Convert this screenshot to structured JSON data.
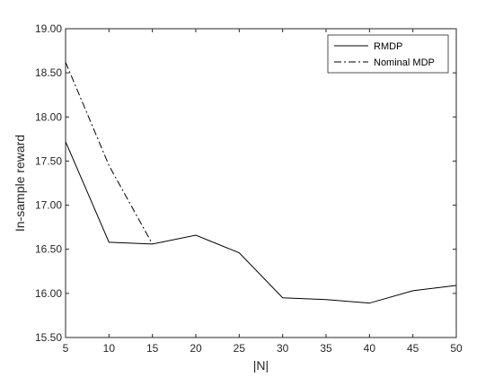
{
  "chart_data": {
    "type": "line",
    "title": "",
    "xlabel": "|N|",
    "ylabel": "In-sample reward",
    "xlim": [
      5,
      50
    ],
    "ylim": [
      15.5,
      19.0
    ],
    "xticks": [
      5,
      10,
      15,
      20,
      25,
      30,
      35,
      40,
      45,
      50
    ],
    "yticks": [
      15.5,
      16.0,
      16.5,
      17.0,
      17.5,
      18.0,
      18.5,
      19.0
    ],
    "ytick_labels": [
      "15.50",
      "16.00",
      "16.50",
      "17.00",
      "17.50",
      "18.00",
      "18.50",
      "19.00"
    ],
    "grid": false,
    "legend_position": "top-right",
    "series": [
      {
        "name": "RMDP",
        "style": "solid",
        "color": "#000000",
        "x": [
          5,
          10,
          15,
          20,
          25,
          30,
          35,
          40,
          45,
          50
        ],
        "y": [
          17.72,
          16.58,
          16.56,
          16.66,
          16.46,
          15.95,
          15.93,
          15.89,
          16.03,
          16.09
        ]
      },
      {
        "name": "Nominal MDP",
        "style": "dashdot",
        "color": "#000000",
        "x": [
          5,
          10,
          15
        ],
        "y": [
          18.62,
          17.45,
          16.56
        ]
      }
    ]
  }
}
